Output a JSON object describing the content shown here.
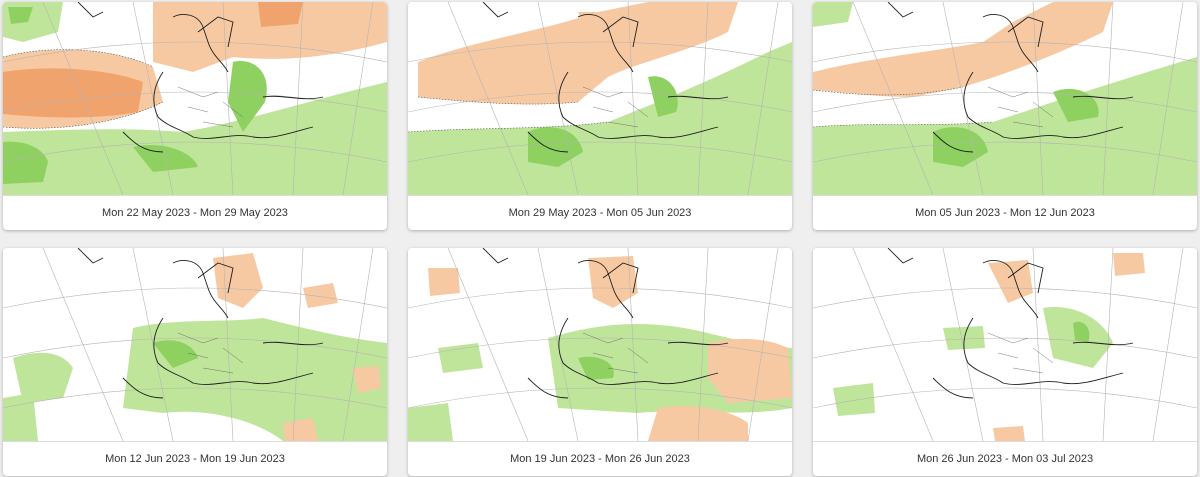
{
  "legend_colors": {
    "positive_light": "#bfe59a",
    "positive_dark": "#8fd160",
    "negative_light": "#f7c9a3",
    "negative_dark": "#f1a36d"
  },
  "panels": [
    {
      "caption": "Mon 22 May 2023 - Mon 29 May 2023"
    },
    {
      "caption": "Mon 29 May 2023 - Mon 05 Jun 2023"
    },
    {
      "caption": "Mon 05 Jun 2023 - Mon 12 Jun 2023"
    },
    {
      "caption": "Mon 12 Jun 2023 - Mon 19 Jun 2023"
    },
    {
      "caption": "Mon 19 Jun 2023 - Mon 26 Jun 2023"
    },
    {
      "caption": "Mon 26 Jun 2023 - Mon 03 Jul 2023"
    }
  ]
}
